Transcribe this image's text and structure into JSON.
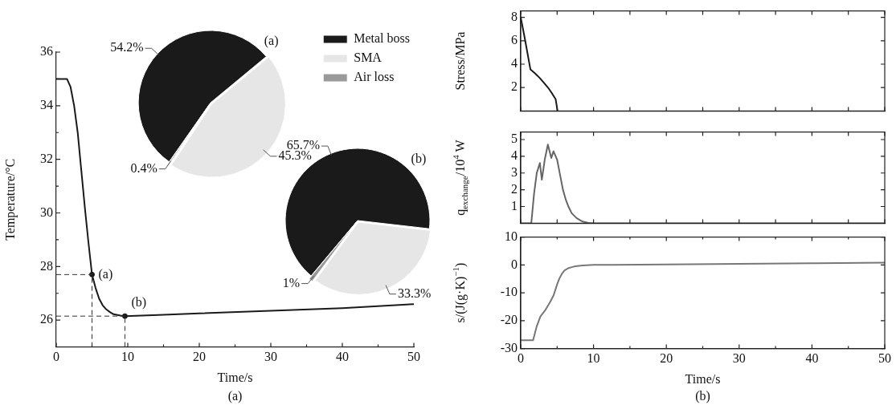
{
  "chart_data": [
    {
      "type": "line",
      "xlabel": "Time/s",
      "ylabel": "Temperature/°C",
      "xlim": [
        0,
        50
      ],
      "ylim": [
        25,
        36
      ],
      "xticks": [
        0,
        {
          "value": 5,
          "label": null
        },
        10,
        {
          "value": 15,
          "label": null
        },
        20,
        {
          "value": 25,
          "label": null
        },
        30,
        {
          "value": 35,
          "label": null
        },
        40,
        {
          "value": 45,
          "label": null
        },
        50
      ],
      "yticks": [
        26,
        {
          "value": 27,
          "label": null
        },
        28,
        {
          "value": 29,
          "label": null
        },
        30,
        {
          "value": 31,
          "label": null
        },
        32,
        {
          "value": 33,
          "label": null
        },
        34,
        {
          "value": 35,
          "label": null
        },
        36
      ],
      "grid": false,
      "marker": "none",
      "series": [
        {
          "type": "line",
          "color": "#1a1a1a",
          "x": [
            0,
            1.5,
            2,
            2.5,
            3,
            3.5,
            4,
            4.5,
            5,
            5.5,
            6,
            6.5,
            7,
            7.5,
            8,
            9,
            9.6,
            15,
            20,
            30,
            40,
            50
          ],
          "values": [
            35,
            35,
            34.7,
            34,
            33,
            31.6,
            30.2,
            28.9,
            27.7,
            27.2,
            26.8,
            26.55,
            26.4,
            26.3,
            26.22,
            26.17,
            26.15,
            26.2,
            26.25,
            26.35,
            26.45,
            26.6
          ]
        },
        {
          "type": "scatter",
          "color": "#1a1a1a",
          "marker": "circle",
          "x": [
            5,
            9.6
          ],
          "values": [
            27.7,
            26.15
          ]
        }
      ],
      "ref_lines": [
        {
          "axis": "x",
          "value": 5,
          "line_style": "dashed",
          "color": "#333333"
        },
        {
          "axis": "y",
          "value": 27.7,
          "line_style": "dashed",
          "color": "#333333"
        },
        {
          "axis": "x",
          "value": 9.6,
          "line_style": "dashed",
          "color": "#333333"
        },
        {
          "axis": "y",
          "value": 26.15,
          "line_style": "dashed",
          "color": "#333333"
        }
      ],
      "annotations": [
        {
          "text": "(a)",
          "x": 5,
          "y": 27.7
        },
        {
          "text": "(b)",
          "x": 9.6,
          "y": 26.15
        },
        "(a)"
      ]
    },
    {
      "type": "pie",
      "title": "(a)",
      "categories": [
        "Metal boss",
        "SMA",
        "Air loss"
      ],
      "values": [
        54.2,
        45.3,
        0.4
      ],
      "colors": [
        "#1a1a1a",
        "#e6e6e6",
        "#9a9a9a"
      ],
      "value_labels": [
        "54.2%",
        "45.3%",
        "0.4%"
      ],
      "legend": "top right"
    },
    {
      "type": "pie",
      "title": "(b)",
      "categories": [
        null,
        null,
        null
      ],
      "values": [
        65.7,
        33.3,
        1
      ],
      "colors": [
        "#1a1a1a",
        "#e6e6e6",
        "#9a9a9a"
      ],
      "value_labels": [
        "65.7%",
        "33.3%",
        "1%"
      ]
    },
    {
      "type": "line",
      "ylabel": "Stress/MPa",
      "xlim": [
        0,
        50
      ],
      "ylim": [
        0,
        8.55
      ],
      "xticks": [
        0,
        5,
        10,
        15,
        20,
        25,
        30,
        35,
        40,
        45,
        50
      ],
      "yticks": [
        2,
        4,
        6,
        8
      ],
      "tick_labels": "y",
      "grid": false,
      "marker": "none",
      "series": [
        {
          "type": "line",
          "color": "#1a1a1a",
          "x": [
            0,
            0.5,
            1.33,
            2,
            2.6,
            3.2,
            3.8,
            4.3,
            4.8,
            5.06
          ],
          "values": [
            8,
            6.4,
            3.56,
            3.2,
            2.83,
            2.4,
            1.96,
            1.5,
            1,
            0
          ]
        }
      ]
    },
    {
      "type": "line",
      "ylabel": "q$_{exchange}$/10$^{4}$ W",
      "xlim": [
        0,
        50
      ],
      "ylim": [
        0,
        5.45
      ],
      "xticks": [
        0,
        5,
        10,
        15,
        20,
        25,
        30,
        35,
        40,
        45,
        50
      ],
      "yticks": [
        1,
        2,
        3,
        4,
        5
      ],
      "tick_labels": "y",
      "grid": false,
      "marker": "none",
      "series": [
        {
          "type": "line",
          "color": "#666666",
          "x": [
            0,
            1.45,
            1.84,
            2.2,
            2.63,
            2.9,
            3.3,
            3.73,
            4.2,
            4.5,
            5,
            5.4,
            5.8,
            6.2,
            6.55,
            7,
            7.7,
            8.5,
            9.3,
            10,
            20,
            30,
            40,
            50
          ],
          "values": [
            0,
            0,
            1.8,
            3,
            3.6,
            2.6,
            3.8,
            4.7,
            3.9,
            4.3,
            3.8,
            2.9,
            2,
            1.4,
            1,
            0.6,
            0.3,
            0.1,
            0.02,
            0,
            0,
            0,
            0,
            0
          ]
        }
      ]
    },
    {
      "type": "line",
      "xlabel": "Time/s",
      "ylabel": "s/(J(g·K)$^{−1}$)",
      "xlim": [
        0,
        50
      ],
      "ylim": [
        -30,
        10
      ],
      "xticks": [
        0,
        {
          "value": 5,
          "label": null
        },
        10,
        {
          "value": 15,
          "label": null
        },
        20,
        {
          "value": 25,
          "label": null
        },
        30,
        {
          "value": 35,
          "label": null
        },
        40,
        {
          "value": 45,
          "label": null
        },
        50
      ],
      "yticks": [
        -30,
        -20,
        -10,
        0,
        10
      ],
      "grid": false,
      "marker": "none",
      "series": [
        {
          "type": "line",
          "color": "#777777",
          "x": [
            0,
            1.7,
            2.2,
            2.7,
            3.3,
            4,
            4.5,
            5,
            5.3,
            5.7,
            6,
            6.5,
            7,
            7.5,
            8.5,
            10,
            20,
            30,
            40,
            50
          ],
          "values": [
            -27,
            -27,
            -22,
            -18.5,
            -16.5,
            -13.5,
            -11,
            -7,
            -4.9,
            -3,
            -2,
            -1.2,
            -0.8,
            -0.5,
            -0.2,
            0,
            0.2,
            0.4,
            0.6,
            0.8
          ]
        }
      ],
      "annotations": [
        "(b)"
      ]
    }
  ]
}
